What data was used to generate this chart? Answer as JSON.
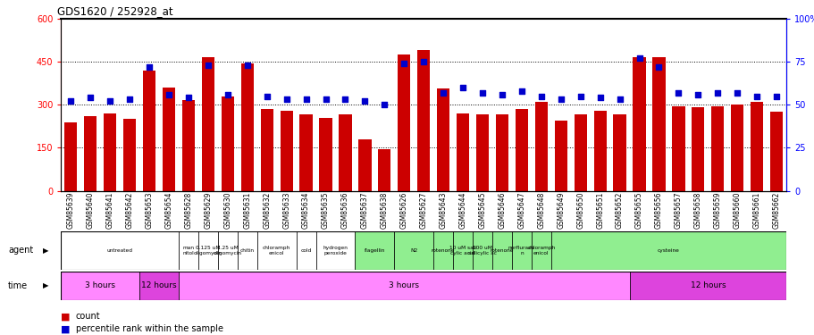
{
  "title": "GDS1620 / 252928_at",
  "samples": [
    "GSM85639",
    "GSM85640",
    "GSM85641",
    "GSM85642",
    "GSM85653",
    "GSM85654",
    "GSM85628",
    "GSM85629",
    "GSM85630",
    "GSM85631",
    "GSM85632",
    "GSM85633",
    "GSM85634",
    "GSM85635",
    "GSM85636",
    "GSM85637",
    "GSM85638",
    "GSM85626",
    "GSM85627",
    "GSM85643",
    "GSM85644",
    "GSM85645",
    "GSM85646",
    "GSM85647",
    "GSM85648",
    "GSM85649",
    "GSM85650",
    "GSM85651",
    "GSM85652",
    "GSM85655",
    "GSM85656",
    "GSM85657",
    "GSM85658",
    "GSM85659",
    "GSM85660",
    "GSM85661",
    "GSM85662"
  ],
  "counts": [
    240,
    260,
    270,
    250,
    420,
    360,
    315,
    465,
    330,
    445,
    285,
    280,
    265,
    255,
    265,
    180,
    145,
    475,
    490,
    355,
    270,
    265,
    265,
    285,
    310,
    245,
    265,
    280,
    265,
    465,
    465,
    295,
    290,
    295,
    300,
    310,
    275
  ],
  "percentiles": [
    52,
    54,
    52,
    53,
    72,
    56,
    54,
    73,
    56,
    73,
    55,
    53,
    53,
    53,
    53,
    52,
    50,
    74,
    75,
    57,
    60,
    57,
    56,
    58,
    55,
    53,
    55,
    54,
    53,
    77,
    72,
    57,
    56,
    57,
    57,
    55,
    55
  ],
  "agent_groups": [
    {
      "label": "untreated",
      "start": 0,
      "end": 6,
      "color": "#ffffff"
    },
    {
      "label": "man\nnitol",
      "start": 6,
      "end": 7,
      "color": "#ffffff"
    },
    {
      "label": "0.125 uM\noligomycin",
      "start": 7,
      "end": 8,
      "color": "#ffffff"
    },
    {
      "label": "1.25 uM\noligomycin",
      "start": 8,
      "end": 9,
      "color": "#ffffff"
    },
    {
      "label": "chitin",
      "start": 9,
      "end": 10,
      "color": "#ffffff"
    },
    {
      "label": "chloramph\nenicol",
      "start": 10,
      "end": 12,
      "color": "#ffffff"
    },
    {
      "label": "cold",
      "start": 12,
      "end": 13,
      "color": "#ffffff"
    },
    {
      "label": "hydrogen\nperoxide",
      "start": 13,
      "end": 15,
      "color": "#ffffff"
    },
    {
      "label": "flagellin",
      "start": 15,
      "end": 17,
      "color": "#90EE90"
    },
    {
      "label": "N2",
      "start": 17,
      "end": 19,
      "color": "#90EE90"
    },
    {
      "label": "rotenone",
      "start": 19,
      "end": 20,
      "color": "#90EE90"
    },
    {
      "label": "10 uM sali\ncylic acid",
      "start": 20,
      "end": 21,
      "color": "#90EE90"
    },
    {
      "label": "100 uM\nsalicylic ac",
      "start": 21,
      "end": 22,
      "color": "#90EE90"
    },
    {
      "label": "rotenone",
      "start": 22,
      "end": 23,
      "color": "#90EE90"
    },
    {
      "label": "norflurazo\nn",
      "start": 23,
      "end": 24,
      "color": "#90EE90"
    },
    {
      "label": "chloramph\nenicol",
      "start": 24,
      "end": 25,
      "color": "#90EE90"
    },
    {
      "label": "cysteine",
      "start": 25,
      "end": 37,
      "color": "#90EE90"
    }
  ],
  "time_groups": [
    {
      "label": "3 hours",
      "start": 0,
      "end": 4,
      "color": "#ff88ff"
    },
    {
      "label": "12 hours",
      "start": 4,
      "end": 6,
      "color": "#dd44dd"
    },
    {
      "label": "3 hours",
      "start": 6,
      "end": 29,
      "color": "#ff88ff"
    },
    {
      "label": "12 hours",
      "start": 29,
      "end": 37,
      "color": "#dd44dd"
    }
  ],
  "bar_color": "#cc0000",
  "dot_color": "#0000cc",
  "ylim_left": [
    0,
    600
  ],
  "ylim_right": [
    0,
    100
  ],
  "yticks_left": [
    0,
    150,
    300,
    450,
    600
  ],
  "yticks_right": [
    0,
    25,
    50,
    75,
    100
  ],
  "dotted_lines": [
    150,
    300,
    450
  ]
}
